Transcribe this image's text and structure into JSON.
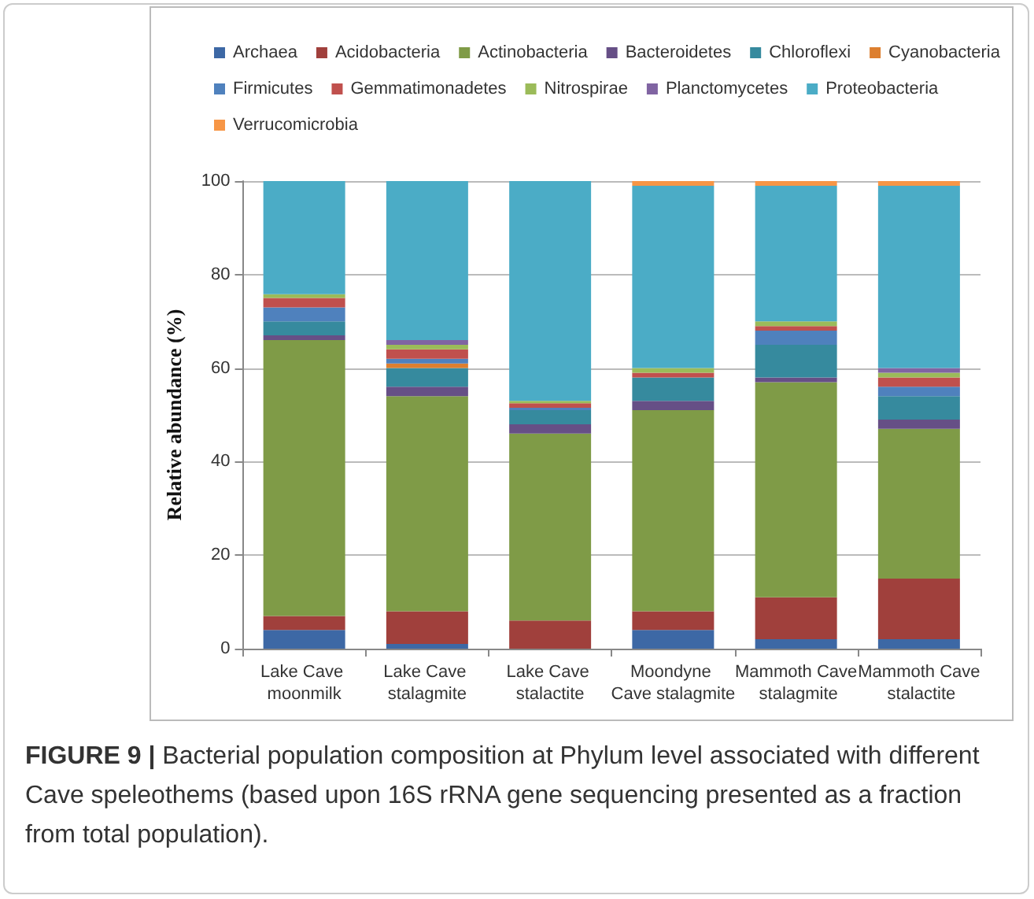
{
  "chart_data": {
    "type": "bar",
    "stacked": true,
    "ylabel": "Relative abundance (%)",
    "categories": [
      "Lake Cave moonmilk",
      "Lake Cave stalagmite",
      "Lake Cave stalactite",
      "Moondyne Cave stalagmite",
      "Mammoth Cave stalagmite",
      "Mammoth Cave stalactite"
    ],
    "series": [
      {
        "name": "Archaea",
        "color": "#3d68a5",
        "values": [
          4,
          1,
          0,
          4,
          2,
          2
        ]
      },
      {
        "name": "Acidobacteria",
        "color": "#a0403c",
        "values": [
          3,
          7,
          6,
          4,
          9,
          13
        ]
      },
      {
        "name": "Actinobacteria",
        "color": "#7f9b47",
        "values": [
          59,
          46,
          40,
          43,
          46,
          32
        ]
      },
      {
        "name": "Bacteroidetes",
        "color": "#664f86",
        "values": [
          1,
          2,
          2,
          2,
          1,
          2
        ]
      },
      {
        "name": "Chloroflexi",
        "color": "#368a9e",
        "values": [
          3,
          4,
          3,
          5,
          7,
          5
        ]
      },
      {
        "name": "Cyanobacteria",
        "color": "#dd7f2f",
        "values": [
          0,
          1,
          0,
          0,
          0,
          0
        ]
      },
      {
        "name": "Firmicutes",
        "color": "#4f81bd",
        "values": [
          3,
          1,
          0.5,
          0,
          3,
          2
        ]
      },
      {
        "name": "Gemmatimonadetes",
        "color": "#c0504d",
        "values": [
          2,
          2,
          1,
          1,
          1,
          2
        ]
      },
      {
        "name": "Nitrospirae",
        "color": "#9bbb59",
        "values": [
          0.8,
          1,
          0.5,
          1,
          1,
          1
        ]
      },
      {
        "name": "Planctomycetes",
        "color": "#8064a2",
        "values": [
          0,
          1,
          0,
          0,
          0,
          1
        ]
      },
      {
        "name": "Proteobacteria",
        "color": "#4bacc6",
        "values": [
          24.2,
          34,
          47,
          39,
          29,
          39
        ]
      },
      {
        "name": "Verrucomicrobia",
        "color": "#f79646",
        "values": [
          0,
          0,
          0,
          1,
          1,
          1
        ]
      }
    ],
    "ylim": [
      0,
      100
    ],
    "yticks": [
      0,
      20,
      40,
      60,
      80,
      100
    ],
    "grid": "y",
    "legend": "top",
    "annotations": [
      "FIGURE 9 | Bacterial population composition at Phylum level associated with different Cave speleothems (based upon 16S rRNA gene sequencing presented as a fraction from total population)."
    ]
  }
}
